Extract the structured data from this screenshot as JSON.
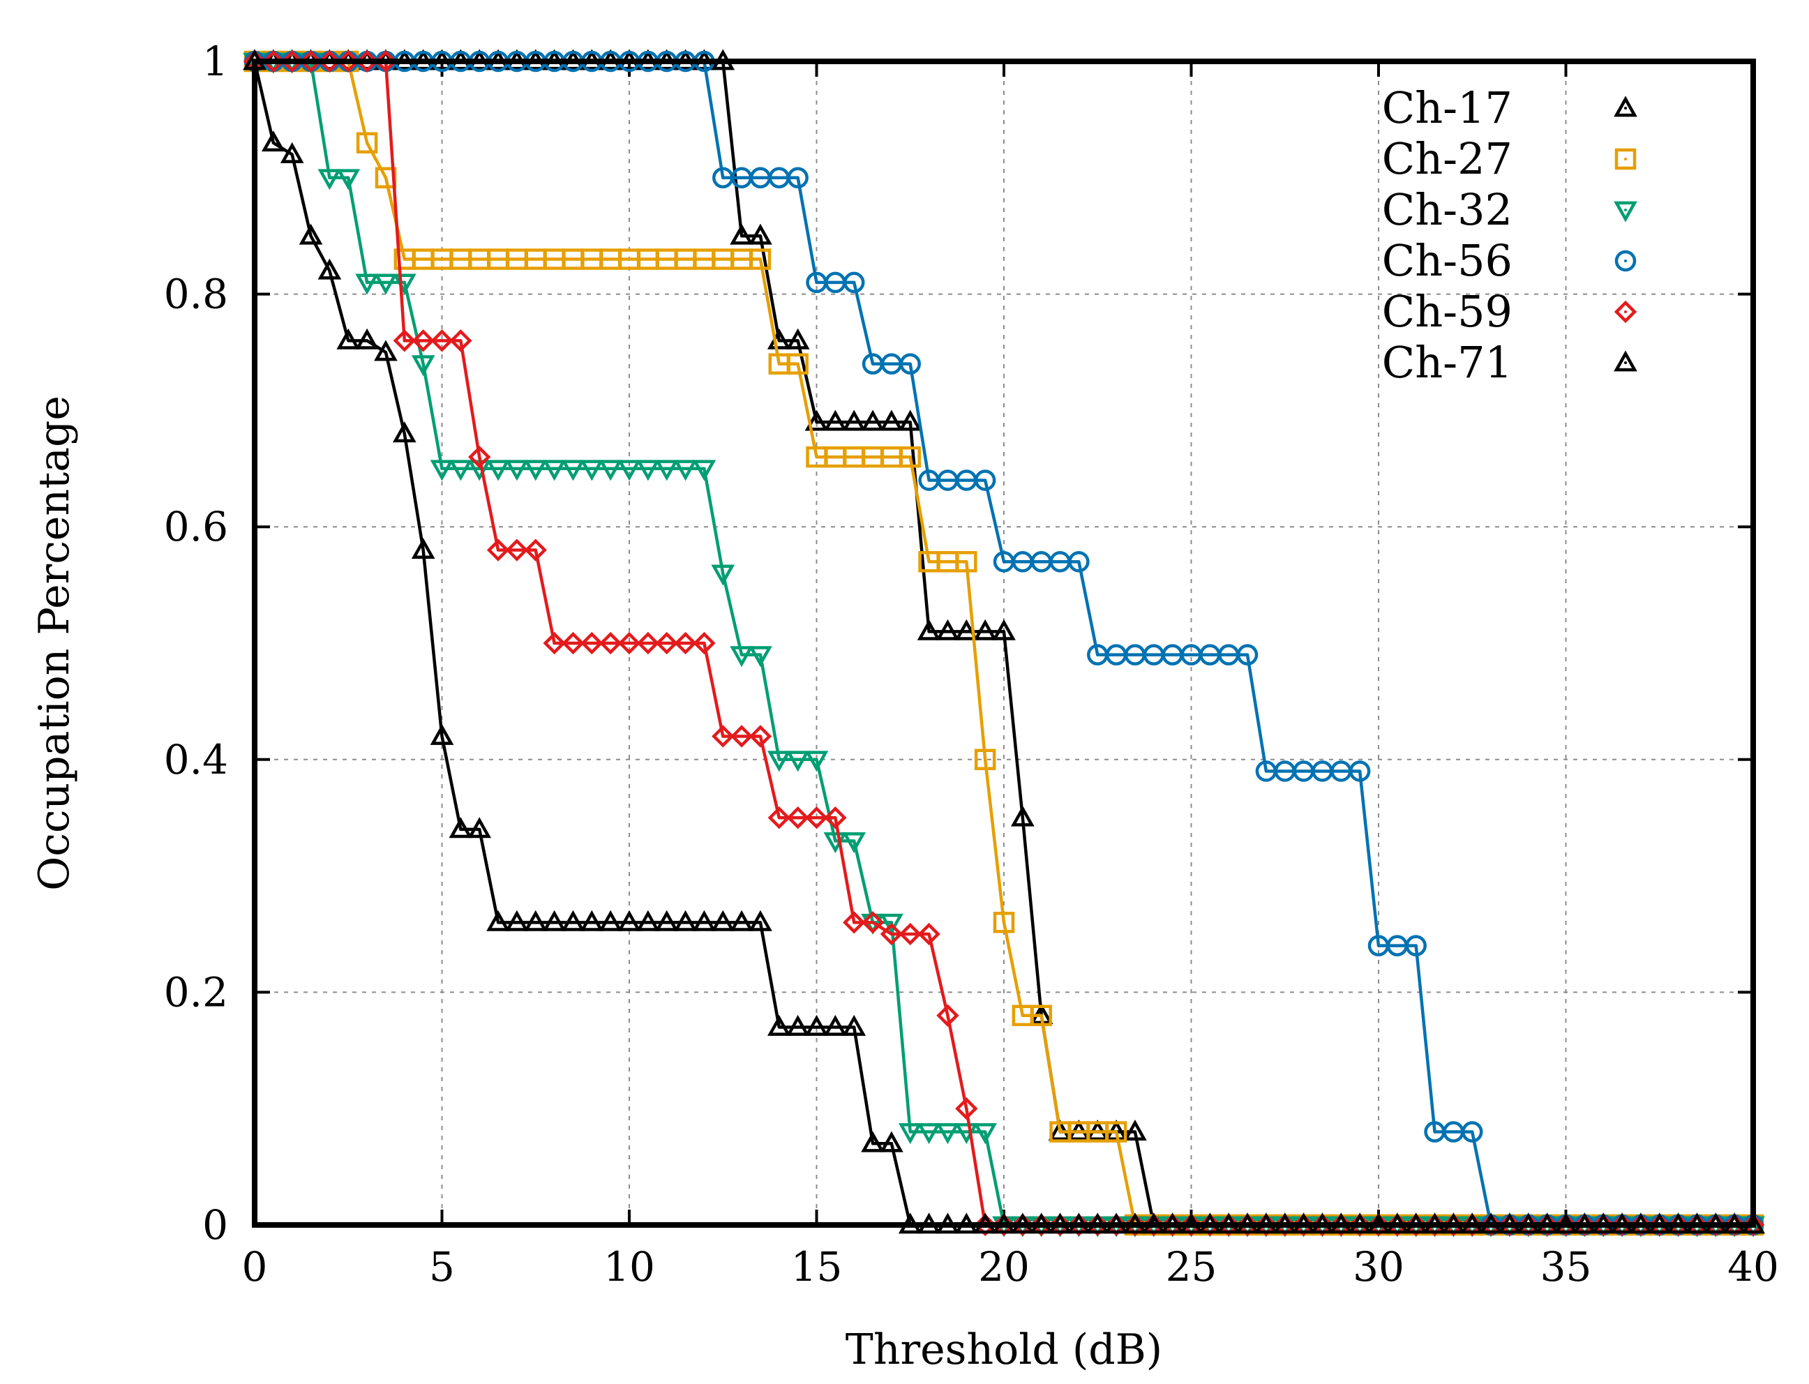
{
  "chart_data": {
    "type": "line",
    "title": "",
    "xlabel": "Threshold (dB)",
    "ylabel": "Occupation Percentage",
    "xlim": [
      0,
      40
    ],
    "ylim": [
      0,
      1
    ],
    "xticks": [
      0,
      5,
      10,
      15,
      20,
      25,
      30,
      35,
      40
    ],
    "xtick_labels": [
      "0",
      "5",
      "10",
      "15",
      "20",
      "25",
      "30",
      "35",
      "40"
    ],
    "yticks": [
      0,
      0.2,
      0.4,
      0.6,
      0.8,
      1
    ],
    "ytick_labels": [
      "0",
      "0.2",
      "0.4",
      "0.6",
      "0.8",
      "1"
    ],
    "grid": true,
    "legend_position": "top-right",
    "series": [
      {
        "name": "Ch-17",
        "color": "#000000",
        "marker": "triangle-up",
        "x": [
          0,
          0.5,
          1,
          1.5,
          2,
          2.5,
          3,
          3.5,
          4,
          4.5,
          5,
          5.5,
          6,
          6.5,
          7,
          7.5,
          8,
          8.5,
          9,
          9.5,
          10,
          10.5,
          11,
          11.5,
          12,
          12.5,
          13,
          13.5,
          14,
          14.5,
          15,
          15.5,
          16,
          16.5,
          17,
          17.5,
          18,
          18.5,
          19,
          19.5,
          20,
          20.5,
          21,
          21.5,
          22,
          22.5,
          23,
          23.5,
          24,
          24.5,
          25,
          25.5,
          26,
          26.5,
          27,
          27.5,
          28,
          28.5,
          29,
          29.5,
          30,
          30.5,
          31,
          31.5,
          32,
          32.5,
          33,
          33.5,
          34,
          34.5,
          35,
          35.5,
          36,
          36.5,
          37,
          37.5,
          38,
          38.5,
          39,
          39.5,
          40
        ],
        "values": [
          1,
          1,
          1,
          1,
          1,
          1,
          1,
          1,
          1,
          1,
          1,
          1,
          1,
          1,
          1,
          1,
          1,
          1,
          1,
          1,
          1,
          1,
          1,
          1,
          1,
          1,
          0.85,
          0.85,
          0.76,
          0.76,
          0.69,
          0.69,
          0.69,
          0.69,
          0.69,
          0.69,
          0.51,
          0.51,
          0.51,
          0.51,
          0.51,
          0.35,
          0.18,
          0.08,
          0.08,
          0.08,
          0.08,
          0.08,
          0,
          0,
          0,
          0,
          0,
          0,
          0,
          0,
          0,
          0,
          0,
          0,
          0,
          0,
          0,
          0,
          0,
          0,
          0,
          0,
          0,
          0,
          0,
          0,
          0,
          0,
          0,
          0,
          0,
          0,
          0,
          0,
          0
        ]
      },
      {
        "name": "Ch-27",
        "color": "#e69f00",
        "marker": "square",
        "x": [
          0,
          0.5,
          1,
          1.5,
          2,
          2.5,
          3,
          3.5,
          4,
          4.5,
          5,
          5.5,
          6,
          6.5,
          7,
          7.5,
          8,
          8.5,
          9,
          9.5,
          10,
          10.5,
          11,
          11.5,
          12,
          12.5,
          13,
          13.5,
          14,
          14.5,
          15,
          15.5,
          16,
          16.5,
          17,
          17.5,
          18,
          18.5,
          19,
          19.5,
          20,
          20.5,
          21,
          21.5,
          22,
          22.5,
          23,
          23.5,
          24,
          24.5,
          25,
          25.5,
          26,
          26.5,
          27,
          27.5,
          28,
          28.5,
          29,
          29.5,
          30,
          30.5,
          31,
          31.5,
          32,
          32.5,
          33,
          33.5,
          34,
          34.5,
          35,
          35.5,
          36,
          36.5,
          37,
          37.5,
          38,
          38.5,
          39,
          39.5,
          40
        ],
        "values": [
          1,
          1,
          1,
          1,
          1,
          1,
          0.93,
          0.9,
          0.83,
          0.83,
          0.83,
          0.83,
          0.83,
          0.83,
          0.83,
          0.83,
          0.83,
          0.83,
          0.83,
          0.83,
          0.83,
          0.83,
          0.83,
          0.83,
          0.83,
          0.83,
          0.83,
          0.83,
          0.74,
          0.74,
          0.66,
          0.66,
          0.66,
          0.66,
          0.66,
          0.66,
          0.57,
          0.57,
          0.57,
          0.4,
          0.26,
          0.18,
          0.18,
          0.08,
          0.08,
          0.08,
          0.08,
          0,
          0,
          0,
          0,
          0,
          0,
          0,
          0,
          0,
          0,
          0,
          0,
          0,
          0,
          0,
          0,
          0,
          0,
          0,
          0,
          0,
          0,
          0,
          0,
          0,
          0,
          0,
          0,
          0,
          0,
          0,
          0,
          0,
          0
        ]
      },
      {
        "name": "Ch-32",
        "color": "#009e73",
        "marker": "triangle-down",
        "x": [
          0,
          0.5,
          1,
          1.5,
          2,
          2.5,
          3,
          3.5,
          4,
          4.5,
          5,
          5.5,
          6,
          6.5,
          7,
          7.5,
          8,
          8.5,
          9,
          9.5,
          10,
          10.5,
          11,
          11.5,
          12,
          12.5,
          13,
          13.5,
          14,
          14.5,
          15,
          15.5,
          16,
          16.5,
          17,
          17.5,
          18,
          18.5,
          19,
          19.5,
          20,
          20.5,
          21,
          21.5,
          22,
          22.5,
          23,
          23.5,
          24,
          24.5,
          25,
          25.5,
          26,
          26.5,
          27,
          27.5,
          28,
          28.5,
          29,
          29.5,
          30,
          30.5,
          31,
          31.5,
          32,
          32.5,
          33,
          33.5,
          34,
          34.5,
          35,
          35.5,
          36,
          36.5,
          37,
          37.5,
          38,
          38.5,
          39,
          39.5,
          40
        ],
        "values": [
          1,
          1,
          1,
          1,
          0.9,
          0.9,
          0.81,
          0.81,
          0.81,
          0.74,
          0.65,
          0.65,
          0.65,
          0.65,
          0.65,
          0.65,
          0.65,
          0.65,
          0.65,
          0.65,
          0.65,
          0.65,
          0.65,
          0.65,
          0.65,
          0.56,
          0.49,
          0.49,
          0.4,
          0.4,
          0.4,
          0.33,
          0.33,
          0.26,
          0.26,
          0.08,
          0.08,
          0.08,
          0.08,
          0.08,
          0,
          0,
          0,
          0,
          0,
          0,
          0,
          0,
          0,
          0,
          0,
          0,
          0,
          0,
          0,
          0,
          0,
          0,
          0,
          0,
          0,
          0,
          0,
          0,
          0,
          0,
          0,
          0,
          0,
          0,
          0,
          0,
          0,
          0,
          0,
          0,
          0,
          0,
          0,
          0,
          0
        ]
      },
      {
        "name": "Ch-56",
        "color": "#0072b2",
        "marker": "circle",
        "x": [
          0,
          0.5,
          1,
          1.5,
          2,
          2.5,
          3,
          3.5,
          4,
          4.5,
          5,
          5.5,
          6,
          6.5,
          7,
          7.5,
          8,
          8.5,
          9,
          9.5,
          10,
          10.5,
          11,
          11.5,
          12,
          12.5,
          13,
          13.5,
          14,
          14.5,
          15,
          15.5,
          16,
          16.5,
          17,
          17.5,
          18,
          18.5,
          19,
          19.5,
          20,
          20.5,
          21,
          21.5,
          22,
          22.5,
          23,
          23.5,
          24,
          24.5,
          25,
          25.5,
          26,
          26.5,
          27,
          27.5,
          28,
          28.5,
          29,
          29.5,
          30,
          30.5,
          31,
          31.5,
          32,
          32.5,
          33,
          33.5,
          34,
          34.5,
          35,
          35.5,
          36,
          36.5,
          37,
          37.5,
          38,
          38.5,
          39,
          39.5,
          40
        ],
        "values": [
          1,
          1,
          1,
          1,
          1,
          1,
          1,
          1,
          1,
          1,
          1,
          1,
          1,
          1,
          1,
          1,
          1,
          1,
          1,
          1,
          1,
          1,
          1,
          1,
          1,
          0.9,
          0.9,
          0.9,
          0.9,
          0.9,
          0.81,
          0.81,
          0.81,
          0.74,
          0.74,
          0.74,
          0.64,
          0.64,
          0.64,
          0.64,
          0.57,
          0.57,
          0.57,
          0.57,
          0.57,
          0.49,
          0.49,
          0.49,
          0.49,
          0.49,
          0.49,
          0.49,
          0.49,
          0.49,
          0.39,
          0.39,
          0.39,
          0.39,
          0.39,
          0.39,
          0.24,
          0.24,
          0.24,
          0.08,
          0.08,
          0.08,
          0,
          0,
          0,
          0,
          0,
          0,
          0,
          0,
          0,
          0,
          0,
          0,
          0,
          0,
          0
        ]
      },
      {
        "name": "Ch-59",
        "color": "#e41a1c",
        "marker": "diamond",
        "x": [
          0,
          0.5,
          1,
          1.5,
          2,
          2.5,
          3,
          3.5,
          4,
          4.5,
          5,
          5.5,
          6,
          6.5,
          7,
          7.5,
          8,
          8.5,
          9,
          9.5,
          10,
          10.5,
          11,
          11.5,
          12,
          12.5,
          13,
          13.5,
          14,
          14.5,
          15,
          15.5,
          16,
          16.5,
          17,
          17.5,
          18,
          18.5,
          19,
          19.5,
          20,
          20.5,
          21,
          21.5,
          22,
          22.5,
          23,
          23.5,
          24,
          24.5,
          25,
          25.5,
          26,
          26.5,
          27,
          27.5,
          28,
          28.5,
          29,
          29.5,
          30,
          30.5,
          31,
          31.5,
          32,
          32.5,
          33,
          33.5,
          34,
          34.5,
          35,
          35.5,
          36,
          36.5,
          37,
          37.5,
          38,
          38.5,
          39,
          39.5,
          40
        ],
        "values": [
          1,
          1,
          1,
          1,
          1,
          1,
          1,
          1,
          0.76,
          0.76,
          0.76,
          0.76,
          0.66,
          0.58,
          0.58,
          0.58,
          0.5,
          0.5,
          0.5,
          0.5,
          0.5,
          0.5,
          0.5,
          0.5,
          0.5,
          0.42,
          0.42,
          0.42,
          0.35,
          0.35,
          0.35,
          0.35,
          0.26,
          0.26,
          0.25,
          0.25,
          0.25,
          0.18,
          0.1,
          0,
          0,
          0,
          0,
          0,
          0,
          0,
          0,
          0,
          0,
          0,
          0,
          0,
          0,
          0,
          0,
          0,
          0,
          0,
          0,
          0,
          0,
          0,
          0,
          0,
          0,
          0,
          0,
          0,
          0,
          0,
          0,
          0,
          0,
          0,
          0,
          0,
          0,
          0,
          0,
          0,
          0
        ]
      },
      {
        "name": "Ch-71",
        "color": "#000000",
        "marker": "triangle-up",
        "x": [
          0,
          0.5,
          1,
          1.5,
          2,
          2.5,
          3,
          3.5,
          4,
          4.5,
          5,
          5.5,
          6,
          6.5,
          7,
          7.5,
          8,
          8.5,
          9,
          9.5,
          10,
          10.5,
          11,
          11.5,
          12,
          12.5,
          13,
          13.5,
          14,
          14.5,
          15,
          15.5,
          16,
          16.5,
          17,
          17.5,
          18,
          18.5,
          19,
          19.5,
          20,
          20.5,
          21,
          21.5,
          22,
          22.5,
          23,
          23.5,
          24,
          24.5,
          25,
          25.5,
          26,
          26.5,
          27,
          27.5,
          28,
          28.5,
          29,
          29.5,
          30,
          30.5,
          31,
          31.5,
          32,
          32.5,
          33,
          33.5,
          34,
          34.5,
          35,
          35.5,
          36,
          36.5,
          37,
          37.5,
          38,
          38.5,
          39,
          39.5,
          40
        ],
        "values": [
          1,
          0.93,
          0.92,
          0.85,
          0.82,
          0.76,
          0.76,
          0.75,
          0.68,
          0.58,
          0.42,
          0.34,
          0.34,
          0.26,
          0.26,
          0.26,
          0.26,
          0.26,
          0.26,
          0.26,
          0.26,
          0.26,
          0.26,
          0.26,
          0.26,
          0.26,
          0.26,
          0.26,
          0.17,
          0.17,
          0.17,
          0.17,
          0.17,
          0.07,
          0.07,
          0,
          0,
          0,
          0,
          0,
          0,
          0,
          0,
          0,
          0,
          0,
          0,
          0,
          0,
          0,
          0,
          0,
          0,
          0,
          0,
          0,
          0,
          0,
          0,
          0,
          0,
          0,
          0,
          0,
          0,
          0,
          0,
          0,
          0,
          0,
          0,
          0,
          0,
          0,
          0,
          0,
          0,
          0,
          0,
          0,
          0
        ]
      }
    ]
  }
}
